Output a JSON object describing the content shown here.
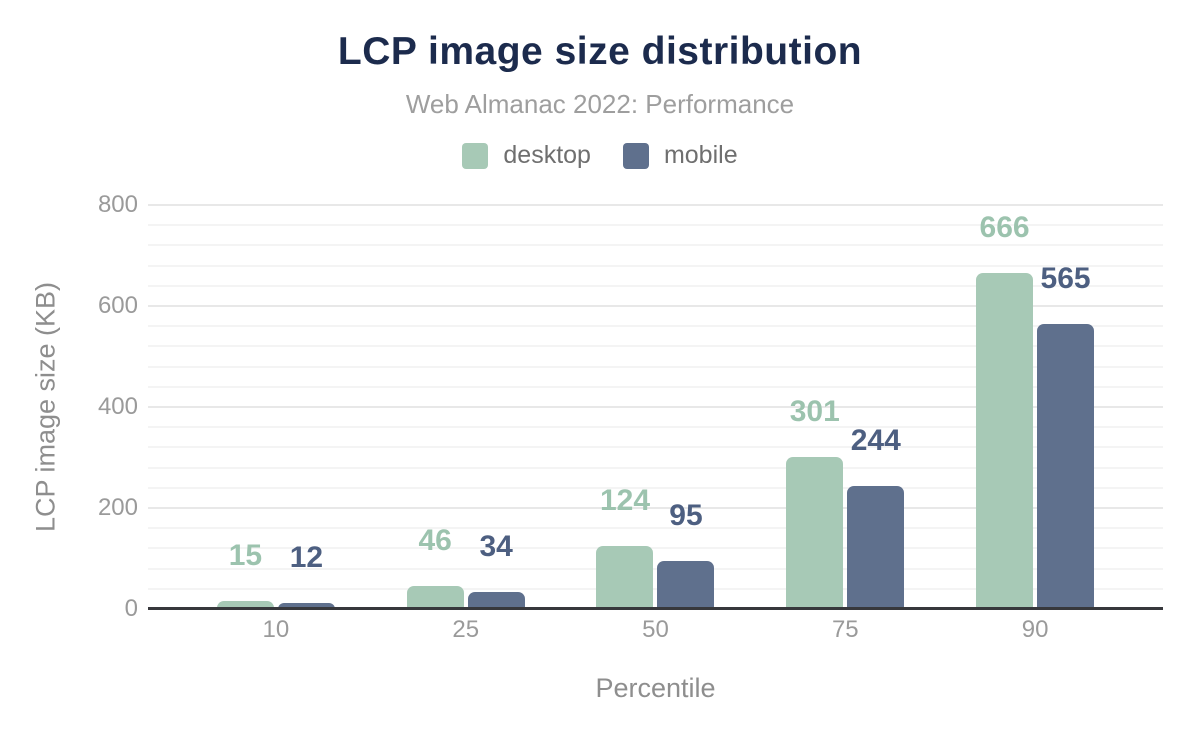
{
  "header": {
    "title": "LCP image size distribution",
    "subtitle": "Web Almanac 2022: Performance",
    "title_color": "#1c2b4d"
  },
  "legend": [
    {
      "label": "desktop",
      "color": "#a7c9b6"
    },
    {
      "label": "mobile",
      "color": "#5f708d"
    }
  ],
  "chart_data": {
    "type": "bar",
    "title": "LCP image size distribution",
    "subtitle": "Web Almanac 2022: Performance",
    "categories": [
      "10",
      "25",
      "50",
      "75",
      "90"
    ],
    "series": [
      {
        "name": "desktop",
        "values": [
          15,
          46,
          124,
          301,
          666
        ],
        "color": "#a7c9b6",
        "label_color": "#9cc3ae"
      },
      {
        "name": "mobile",
        "values": [
          12,
          34,
          95,
          244,
          565
        ],
        "color": "#5f708d",
        "label_color": "#4d5f81"
      }
    ],
    "xlabel": "Percentile",
    "ylabel": "LCP image size (KB)",
    "ylim": [
      0,
      800
    ],
    "yticks": [
      0,
      200,
      400,
      600,
      800
    ],
    "minor_grid_step": 40,
    "grid": "horizontal",
    "legend_position": "top",
    "data_labels": true
  }
}
